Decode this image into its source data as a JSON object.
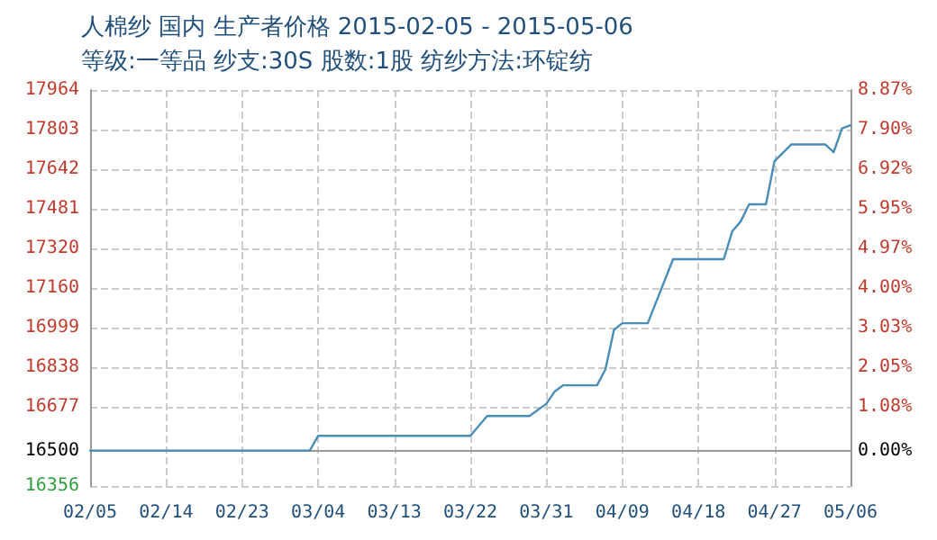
{
  "chart_data": {
    "type": "line",
    "title": "人棉纱 国内 生产者价格 2015-02-05 - 2015-05-06",
    "subtitle": "等级:一等品 纱支:30S 股数:1股 纺纱方法:环锭纺",
    "x": [
      "2015-02-05",
      "2015-03-03",
      "2015-03-04",
      "2015-03-22",
      "2015-03-24",
      "2015-03-29",
      "2015-03-31",
      "2015-04-01",
      "2015-04-02",
      "2015-04-06",
      "2015-04-07",
      "2015-04-08",
      "2015-04-09",
      "2015-04-12",
      "2015-04-15",
      "2015-04-21",
      "2015-04-22",
      "2015-04-23",
      "2015-04-24",
      "2015-04-26",
      "2015-04-27",
      "2015-04-29",
      "2015-05-03",
      "2015-05-04",
      "2015-05-05",
      "2015-05-06"
    ],
    "series": [
      {
        "color": "#4a8db7",
        "values": [
          16500,
          16500,
          16560,
          16560,
          16640,
          16640,
          16690,
          16740,
          16765,
          16765,
          16830,
          16990,
          17017,
          17017,
          17277,
          17277,
          17390,
          17430,
          17500,
          17500,
          17675,
          17743,
          17743,
          17711,
          17808,
          17821
        ]
      }
    ],
    "xlim": [
      "2015-02-05",
      "2015-05-06"
    ],
    "xticks": [
      {
        "value": "2015-02-05",
        "label": "02/05"
      },
      {
        "value": "2015-02-14",
        "label": "02/14"
      },
      {
        "value": "2015-02-23",
        "label": "02/23"
      },
      {
        "value": "2015-03-04",
        "label": "03/04"
      },
      {
        "value": "2015-03-13",
        "label": "03/13"
      },
      {
        "value": "2015-03-22",
        "label": "03/22"
      },
      {
        "value": "2015-03-31",
        "label": "03/31"
      },
      {
        "value": "2015-04-09",
        "label": "04/09"
      },
      {
        "value": "2015-04-18",
        "label": "04/18"
      },
      {
        "value": "2015-04-27",
        "label": "04/27"
      },
      {
        "value": "2015-05-06",
        "label": "05/06"
      }
    ],
    "ylim": [
      16356,
      17964
    ],
    "yticks": [
      16356,
      16500,
      16677,
      16838,
      16999,
      17160,
      17320,
      17481,
      17642,
      17803,
      17964
    ],
    "y2lim": [
      -0.87,
      8.87
    ],
    "y2ticks": [
      {
        "value": 0,
        "label": "0.00%"
      },
      {
        "value": 1.08,
        "label": "1.08%"
      },
      {
        "value": 2.05,
        "label": "2.05%"
      },
      {
        "value": 3.03,
        "label": "3.03%"
      },
      {
        "value": 4,
        "label": "4.00%"
      },
      {
        "value": 4.97,
        "label": "4.97%"
      },
      {
        "value": 5.95,
        "label": "5.95%"
      },
      {
        "value": 6.92,
        "label": "6.92%"
      },
      {
        "value": 7.9,
        "label": "7.90%"
      },
      {
        "value": 8.87,
        "label": "8.87%"
      }
    ],
    "grid": true,
    "marker": "none",
    "line_style": "solid"
  }
}
